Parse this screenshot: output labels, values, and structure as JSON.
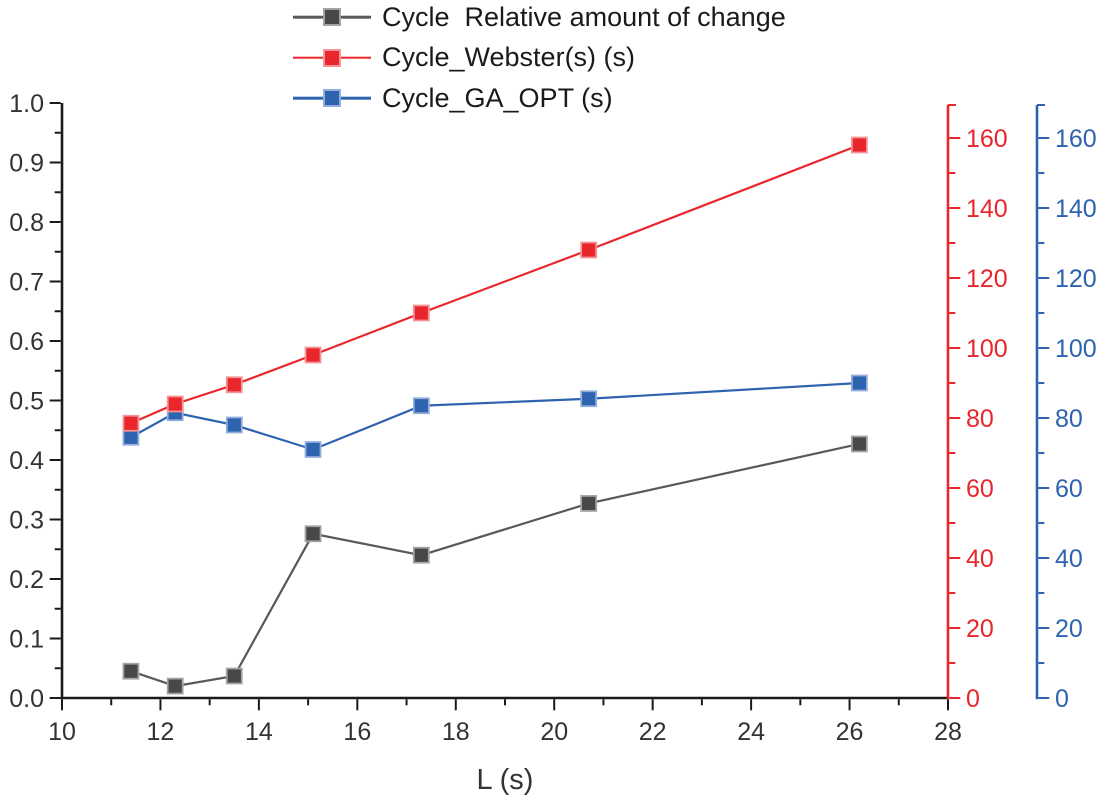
{
  "chart_data": {
    "type": "line",
    "title": "",
    "xlabel": "L (s)",
    "x": [
      11.4,
      12.3,
      13.5,
      15.1,
      17.3,
      20.7,
      26.2
    ],
    "series": [
      {
        "name": "Cycle  Relative amount of change",
        "axis": "left",
        "line_color": "#595959",
        "marker_fill": "#484848",
        "marker_edge": "#a3a3a3",
        "values": [
          0.045,
          0.02,
          0.037,
          0.276,
          0.24,
          0.327,
          0.427
        ]
      },
      {
        "name": "Cycle_Webster(s) (s)",
        "axis": "right",
        "line_color": "#e8262b",
        "marker_fill": "#e8262b",
        "marker_edge": "#f59598",
        "values": [
          78.5,
          84,
          89.5,
          98,
          110,
          128,
          158
        ]
      },
      {
        "name": "Cycle_GA_OPT (s)",
        "axis": "right",
        "line_color": "#2d63af",
        "marker_fill": "#2d63af",
        "marker_edge": "#94aedb",
        "values": [
          74.5,
          81.5,
          78,
          71,
          83.5,
          85.5,
          90
        ]
      }
    ],
    "x_axis": {
      "min": 10,
      "max": 28,
      "major_step": 2,
      "minor_step": 1,
      "tick_labels": [
        "10",
        "12",
        "14",
        "16",
        "18",
        "20",
        "22",
        "24",
        "26",
        "28"
      ],
      "color": "#1a1a1a",
      "label_color": "#333333"
    },
    "left_axis": {
      "min": 0.0,
      "max": 1.0,
      "major_step": 0.1,
      "minor_step": 0.05,
      "decimals": 1,
      "tick_labels": [
        "0.0",
        "0.1",
        "0.2",
        "0.3",
        "0.4",
        "0.5",
        "0.6",
        "0.7",
        "0.8",
        "0.9",
        "1.0"
      ],
      "color": "#1a1a1a",
      "label_color": "#333333"
    },
    "right_axis_red": {
      "min": 0,
      "scale_max": 170,
      "tick_max": 160,
      "major_step": 20,
      "minor_step": 10,
      "tick_labels": [
        "0",
        "20",
        "40",
        "60",
        "80",
        "100",
        "120",
        "140",
        "160"
      ],
      "color": "#e8262b"
    },
    "right_axis_blue": {
      "min": 0,
      "scale_max": 170,
      "tick_max": 160,
      "major_step": 20,
      "minor_step": 10,
      "tick_labels": [
        "0",
        "20",
        "40",
        "60",
        "80",
        "100",
        "120",
        "140",
        "160"
      ],
      "color": "#2d63af"
    },
    "legend_position": "top",
    "grid": false,
    "background": "#ffffff"
  }
}
